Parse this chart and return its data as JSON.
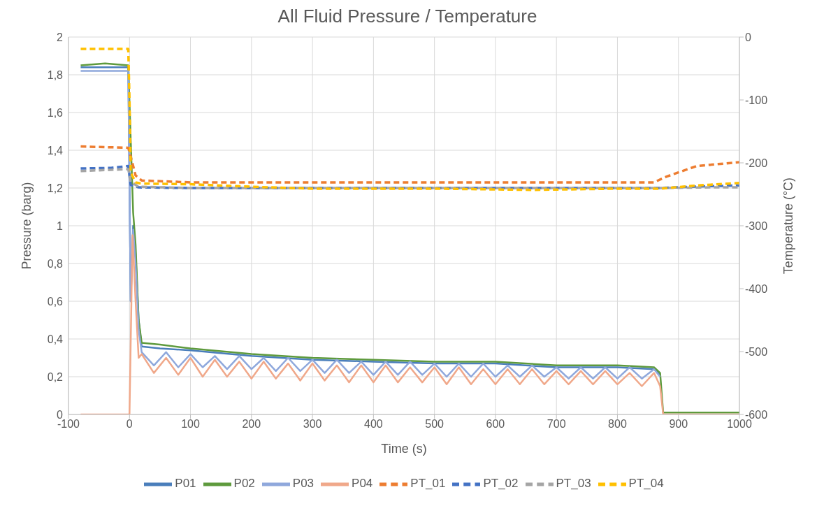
{
  "chart_data": {
    "type": "line",
    "title": "All Fluid Pressure / Temperature",
    "xlabel": "Time (s)",
    "ylabel": "Pressure (barg)",
    "y2label": "Temperature (°C)",
    "xlim": [
      -100,
      1000
    ],
    "xticks": [
      -100,
      0,
      100,
      200,
      300,
      400,
      500,
      600,
      700,
      800,
      900,
      1000
    ],
    "ylim": [
      0,
      2
    ],
    "yticks": [
      0,
      {
        "value": 0.2,
        "label": "0,2"
      },
      {
        "value": 0.4,
        "label": "0,4"
      },
      {
        "value": 0.6,
        "label": "0,6"
      },
      {
        "value": 0.8,
        "label": "0,8"
      },
      1,
      {
        "value": 1.2,
        "label": "1,2"
      },
      {
        "value": 1.4,
        "label": "1,4"
      },
      {
        "value": 1.6,
        "label": "1,6"
      },
      {
        "value": 1.8,
        "label": "1,8"
      },
      2
    ],
    "y2lim": [
      -600,
      0
    ],
    "y2ticks": [
      -600,
      -500,
      -400,
      -300,
      -200,
      -100,
      0
    ],
    "grid": true,
    "legend": "bottom",
    "marker": "none",
    "series": [
      {
        "name": "P01",
        "color": "#4a7ebb",
        "line_style": "solid",
        "x": [
          -80,
          -40,
          -2,
          2,
          6,
          10,
          15,
          20,
          50,
          100,
          200,
          300,
          400,
          500,
          600,
          700,
          800,
          860,
          870
        ],
        "values": [
          1.84,
          1.84,
          1.84,
          0.6,
          1.0,
          0.85,
          0.5,
          0.36,
          0.35,
          0.34,
          0.31,
          0.29,
          0.28,
          0.27,
          0.27,
          0.25,
          0.25,
          0.24,
          0.21
        ]
      },
      {
        "name": "P02",
        "color": "#5e9a3d",
        "line_style": "solid",
        "x": [
          -80,
          -40,
          -2,
          6,
          10,
          15,
          20,
          50,
          100,
          200,
          300,
          400,
          500,
          600,
          700,
          800,
          860,
          870,
          875,
          1000
        ],
        "values": [
          1.85,
          1.86,
          1.85,
          1.07,
          0.9,
          0.5,
          0.38,
          0.37,
          0.35,
          0.32,
          0.3,
          0.29,
          0.28,
          0.28,
          0.26,
          0.26,
          0.25,
          0.22,
          0.01,
          0.01
        ]
      },
      {
        "name": "P03",
        "color": "#8fa8dc",
        "line_style": "solid",
        "x": [
          -80,
          -40,
          -2,
          2,
          6,
          10,
          15,
          20,
          40,
          60,
          80,
          100,
          120,
          140,
          160,
          180,
          200,
          220,
          240,
          260,
          280,
          300,
          320,
          340,
          360,
          380,
          400,
          420,
          440,
          460,
          480,
          500,
          520,
          540,
          560,
          580,
          600,
          620,
          640,
          660,
          680,
          700,
          720,
          740,
          760,
          780,
          800,
          820,
          840,
          860,
          870
        ],
        "values": [
          1.82,
          1.82,
          1.82,
          0.6,
          0.98,
          0.8,
          0.45,
          0.33,
          0.26,
          0.33,
          0.25,
          0.32,
          0.25,
          0.31,
          0.24,
          0.31,
          0.24,
          0.3,
          0.23,
          0.3,
          0.23,
          0.29,
          0.22,
          0.29,
          0.22,
          0.28,
          0.21,
          0.28,
          0.21,
          0.28,
          0.21,
          0.27,
          0.2,
          0.27,
          0.2,
          0.27,
          0.2,
          0.26,
          0.2,
          0.26,
          0.2,
          0.25,
          0.19,
          0.25,
          0.19,
          0.25,
          0.19,
          0.25,
          0.19,
          0.24,
          0.2
        ]
      },
      {
        "name": "P04",
        "color": "#f0a88a",
        "line_style": "solid",
        "x": [
          -80,
          -2,
          0,
          5,
          10,
          15,
          20,
          40,
          60,
          80,
          100,
          120,
          140,
          160,
          180,
          200,
          220,
          240,
          260,
          280,
          300,
          320,
          340,
          360,
          380,
          400,
          420,
          440,
          460,
          480,
          500,
          520,
          540,
          560,
          580,
          600,
          620,
          640,
          660,
          680,
          700,
          720,
          740,
          760,
          780,
          800,
          820,
          840,
          860,
          870,
          875,
          1000
        ],
        "values": [
          0,
          0,
          0,
          0.95,
          0.6,
          0.3,
          0.32,
          0.22,
          0.3,
          0.21,
          0.3,
          0.2,
          0.29,
          0.2,
          0.28,
          0.19,
          0.28,
          0.19,
          0.27,
          0.18,
          0.27,
          0.18,
          0.26,
          0.17,
          0.26,
          0.17,
          0.26,
          0.17,
          0.25,
          0.17,
          0.25,
          0.16,
          0.25,
          0.16,
          0.24,
          0.16,
          0.24,
          0.16,
          0.24,
          0.16,
          0.23,
          0.16,
          0.23,
          0.16,
          0.23,
          0.16,
          0.22,
          0.15,
          0.22,
          0.15,
          0,
          0
        ]
      },
      {
        "name": "PT_01",
        "color": "#ed7d31",
        "line_style": "dashed",
        "axis": "y2",
        "x": [
          -80,
          -2,
          2,
          10,
          20,
          100,
          300,
          500,
          700,
          860,
          880,
          930,
          1000
        ],
        "values": [
          -174,
          -176,
          -190,
          -220,
          -228,
          -231,
          -231,
          -231,
          -231,
          -231,
          -222,
          -205,
          -199
        ]
      },
      {
        "name": "PT_02",
        "color": "#4472c4",
        "line_style": "dashed",
        "axis": "y2",
        "x": [
          -80,
          -30,
          -2,
          2,
          15,
          100,
          300,
          500,
          700,
          870,
          950,
          1000
        ],
        "values": [
          -209,
          -208,
          -205,
          -235,
          -239,
          -240,
          -240,
          -240,
          -240,
          -240,
          -237,
          -236
        ]
      },
      {
        "name": "PT_03",
        "color": "#a5a5a5",
        "line_style": "dashed",
        "axis": "y2",
        "x": [
          -80,
          -2,
          2,
          15,
          100,
          300,
          500,
          700,
          870,
          950,
          1000
        ],
        "values": [
          -213,
          -210,
          -230,
          -238,
          -240,
          -240,
          -240,
          -240,
          -240,
          -239,
          -239
        ]
      },
      {
        "name": "PT_04",
        "color": "#ffc000",
        "line_style": "dashed",
        "axis": "y2",
        "x": [
          -80,
          -2,
          0,
          2,
          10,
          20,
          100,
          200,
          300,
          500,
          660,
          800,
          870,
          930,
          1000
        ],
        "values": [
          -19,
          -19,
          -100,
          -215,
          -231,
          -233,
          -234,
          -238,
          -241,
          -241,
          -243,
          -241,
          -241,
          -236,
          -232
        ]
      }
    ]
  }
}
